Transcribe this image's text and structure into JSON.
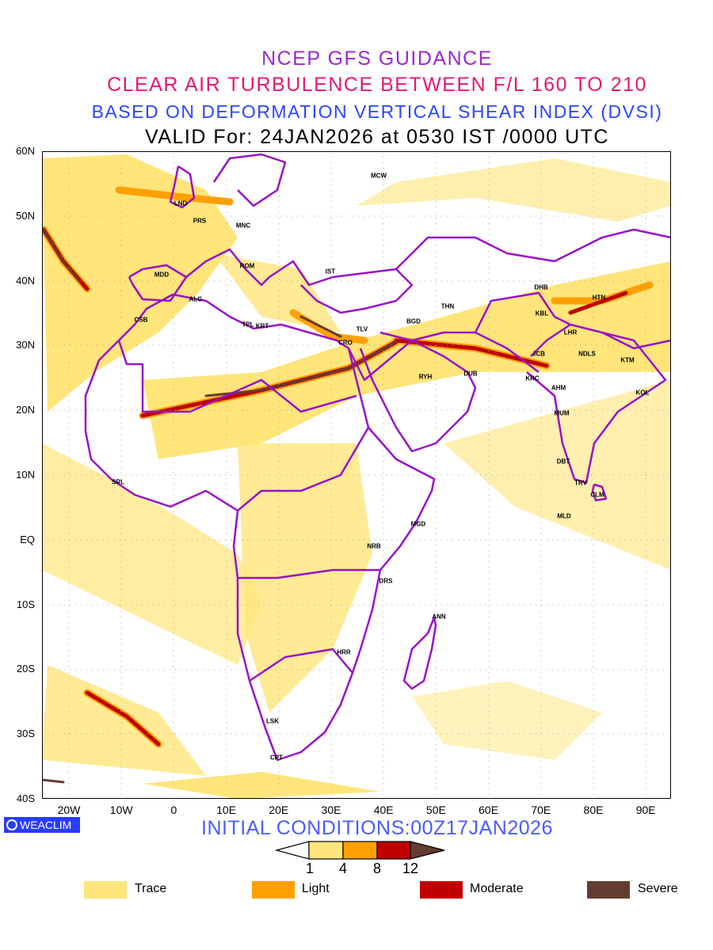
{
  "header": {
    "line1": "NCEP GFS GUIDANCE",
    "line2": "CLEAR AIR TURBULENCE BETWEEN F/L 160 TO 210",
    "line3": "BASED ON DEFORMATION VERTICAL SHEAR INDEX (DVSI)",
    "line4": "VALID For: 24JAN2026 at 0530 IST /0000 UTC",
    "colors": {
      "line1": "#9b27d6",
      "line2": "#e8176f",
      "line3": "#2a45ff",
      "line4": "#000000"
    }
  },
  "axes": {
    "lat_labels": [
      "60N",
      "50N",
      "40N",
      "30N",
      "20N",
      "10N",
      "EQ",
      "10S",
      "20S",
      "30S",
      "40S"
    ],
    "lon_labels": [
      "20W",
      "10W",
      "0",
      "10E",
      "20E",
      "30E",
      "40E",
      "50E",
      "60E",
      "70E",
      "80E",
      "90E"
    ]
  },
  "stations": [
    "MCW",
    "LND",
    "PRS",
    "MNC",
    "ROM",
    "IST",
    "MDD",
    "ALG",
    "CSB",
    "TPL",
    "KRT",
    "TLV",
    "CRO",
    "BGD",
    "THN",
    "DHB",
    "HTN",
    "KBL",
    "LHR",
    "JCB",
    "NDLS",
    "KTM",
    "RYH",
    "DUB",
    "KRC",
    "AHM",
    "KOL",
    "MUM",
    "DBT",
    "TRV",
    "CLM",
    "MLD",
    "SRL",
    "MGD",
    "NRB",
    "DRS",
    "ANN",
    "HRR",
    "LSK",
    "CPT"
  ],
  "footer": {
    "logo": "WEACLIM",
    "initial_conditions": "INITIAL CONDITIONS:00Z17JAN2026",
    "colorbar_ticks": [
      "1",
      "4",
      "8",
      "12"
    ],
    "legend": [
      {
        "label": "Trace",
        "color": "#ffe57a"
      },
      {
        "label": "Light",
        "color": "#ffa000"
      },
      {
        "label": "Moderate",
        "color": "#c00000"
      },
      {
        "label": "Severe",
        "color": "#643c32"
      }
    ],
    "boundary_color": "#9a10c8"
  }
}
